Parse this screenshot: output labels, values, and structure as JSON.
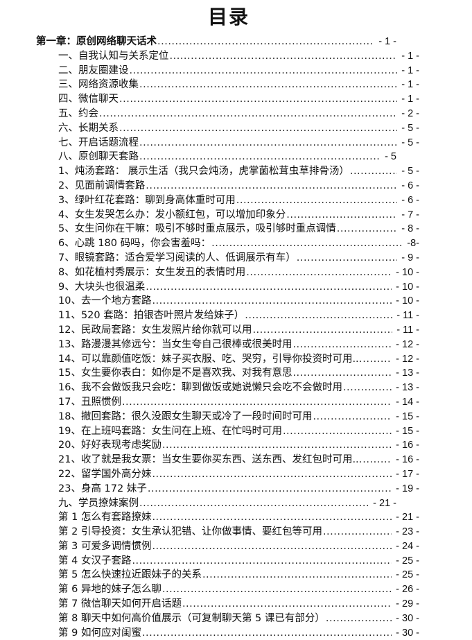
{
  "title": "目录",
  "entries": [
    {
      "level": "chapter",
      "label": "第一章：原创网络聊天话术",
      "page": "- 1 -"
    },
    {
      "level": "section",
      "label": "一、自我认知与关系定位",
      "page": "- 1 -"
    },
    {
      "level": "section",
      "label": "二、朋友圈建设",
      "page": "- 1 -"
    },
    {
      "level": "section",
      "label": "三、网络资源收集",
      "page": "- 1 -"
    },
    {
      "level": "section",
      "label": "四、微信聊天",
      "page": "- 1 -"
    },
    {
      "level": "section",
      "label": "五、约会",
      "page": "- 2 -"
    },
    {
      "level": "section",
      "label": "六、长期关系",
      "page": "- 5 -"
    },
    {
      "level": "section",
      "label": "七、开启话题流程",
      "page": "- 5 -"
    },
    {
      "level": "section-short",
      "label": "八、原创聊天套路",
      "page": "- 5"
    },
    {
      "level": "item",
      "label": "1、炖汤套路：  展示生活（我只会炖汤，虎掌菌松茸虫草排骨汤）",
      "page": "- 5 -"
    },
    {
      "level": "item",
      "label": "2、见面前调情套路",
      "page": "- 6 -"
    },
    {
      "level": "item",
      "label": "3、绿叶红花套路：聊到身高体重时可用",
      "page": "- 6 -"
    },
    {
      "level": "item",
      "label": "4、女生发哭怎么办：发小额红包，可以增加印象分",
      "page": "- 7 -"
    },
    {
      "level": "item",
      "label": "5、女生问你在干嘛：吸引不够时重点展示，吸引够时重点调情",
      "page": "- 8 -"
    },
    {
      "level": "item",
      "label": "6、心跳 180 码吗，你会害羞吗：",
      "page": "-8-"
    },
    {
      "level": "item",
      "label": "7、眼镜套路：适合爱学习阅读的人、低调展示有车）",
      "page": "- 9 -"
    },
    {
      "level": "item",
      "label": "8、如花植村秀展示：女生发丑的表情时用",
      "page": "- 10 -"
    },
    {
      "level": "item",
      "label": "9、大块头也很温柔",
      "page": "- 10 -"
    },
    {
      "level": "item",
      "label": "10、去一个地方套路",
      "page": "- 10 -"
    },
    {
      "level": "item",
      "label": "11、520 套路：拍银杏叶照片发给妹子）",
      "page": "- 11 -"
    },
    {
      "level": "item",
      "label": "12、民政局套路：女生发照片给你就可以用",
      "page": "- 11 -"
    },
    {
      "level": "item",
      "label": "13、路漫漫其修远兮：当女生夸自己很棒或很美时用",
      "page": "- 12 -"
    },
    {
      "level": "item",
      "label": "14、可以靠颜值吃饭：妹子买衣服、吃、哭穷，引导你投资时可用...",
      "page": "- 12 -"
    },
    {
      "level": "item",
      "label": "15、女生要你表白：如你是不是喜欢我、对我有意思",
      "page": "- 13 -"
    },
    {
      "level": "item",
      "label": "16、我不会做饭我只会吃：聊到做饭或她说懒只会吃不会做时用",
      "page": "- 13 -"
    },
    {
      "level": "item",
      "label": "17、丑照惯例",
      "page": "- 14 -"
    },
    {
      "level": "item",
      "label": "18、撤回套路：很久没跟女生聊天或冷了一段时间时可用",
      "page": "- 15 -"
    },
    {
      "level": "item",
      "label": "19、在上班吗套路：女生问在上班、在忙吗时可用",
      "page": "- 15 -"
    },
    {
      "level": "item",
      "label": "20、好好表现考虑奖励",
      "page": "- 16 -"
    },
    {
      "level": "item",
      "label": "21、收了就是我女票：当女生要你买东西、送东西、发红包时可用...",
      "page": "- 16 -"
    },
    {
      "level": "item",
      "label": "22、留学国外高分妹",
      "page": "- 17 -"
    },
    {
      "level": "item",
      "label": "23、身高 172 妹子",
      "page": "- 19 -"
    },
    {
      "level": "section-short",
      "label": "九、学员撩妹案例",
      "page": "- 21 -"
    },
    {
      "level": "item",
      "label": "第 1  怎么有套路撩妹",
      "page": "- 21 -"
    },
    {
      "level": "item",
      "label": "第 2  引导投资：女生承认犯错、让你做事情、要红包等可用",
      "page": "- 23 -"
    },
    {
      "level": "item",
      "label": "第 3  可爱多调情惯例",
      "page": "- 24 -"
    },
    {
      "level": "item",
      "label": "第 4  女汉子套路",
      "page": "- 25 -"
    },
    {
      "level": "item",
      "label": "第 5  怎么快速拉近跟妹子的关系",
      "page": "- 25 -"
    },
    {
      "level": "item",
      "label": "第 6  异地的妹子怎么聊",
      "page": "- 26 -"
    },
    {
      "level": "item",
      "label": "第 7  微信聊天如何开启话题",
      "page": "- 29 -"
    },
    {
      "level": "item",
      "label": "第 8  聊天中如何高价值展示（可复制聊天第 5 课已有部分）",
      "page": "- 30 -"
    },
    {
      "level": "item",
      "label": "第 9  如何应对闺蜜",
      "page": "- 30 -"
    }
  ]
}
